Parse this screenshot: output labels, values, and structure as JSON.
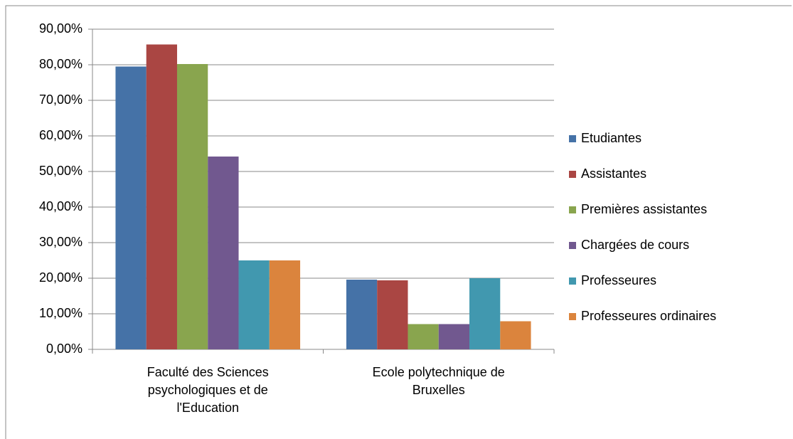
{
  "chart_data": {
    "type": "bar",
    "categories": [
      "Faculté des Sciences psychologiques et de l'Education",
      "Ecole polytechnique de Bruxelles"
    ],
    "series": [
      {
        "name": "Etudiantes",
        "color": "#4572a7",
        "values": [
          79.5,
          19.6
        ]
      },
      {
        "name": "Assistantes",
        "color": "#aa4643",
        "values": [
          85.7,
          19.4
        ]
      },
      {
        "name": "Premières assistantes",
        "color": "#89a54e",
        "values": [
          80.2,
          7.1
        ]
      },
      {
        "name": "Chargées de cours",
        "color": "#71588f",
        "values": [
          54.2,
          7.1
        ]
      },
      {
        "name": "Professeures",
        "color": "#4198af",
        "values": [
          25,
          20
        ]
      },
      {
        "name": "Professeures ordinaires",
        "color": "#db843d",
        "values": [
          25,
          7.9
        ]
      }
    ],
    "ylim": [
      0,
      90
    ],
    "yticks": [
      {
        "value": 0,
        "label": "0,00%"
      },
      {
        "value": 10,
        "label": "10,00%"
      },
      {
        "value": 20,
        "label": "20,00%"
      },
      {
        "value": 30,
        "label": "30,00%"
      },
      {
        "value": 40,
        "label": "40,00%"
      },
      {
        "value": 50,
        "label": "50,00%"
      },
      {
        "value": 60,
        "label": "60,00%"
      },
      {
        "value": 70,
        "label": "70,00%"
      },
      {
        "value": 80,
        "label": "80,00%"
      },
      {
        "value": 90,
        "label": "90,00%"
      }
    ],
    "grid": true,
    "legend": "right"
  }
}
